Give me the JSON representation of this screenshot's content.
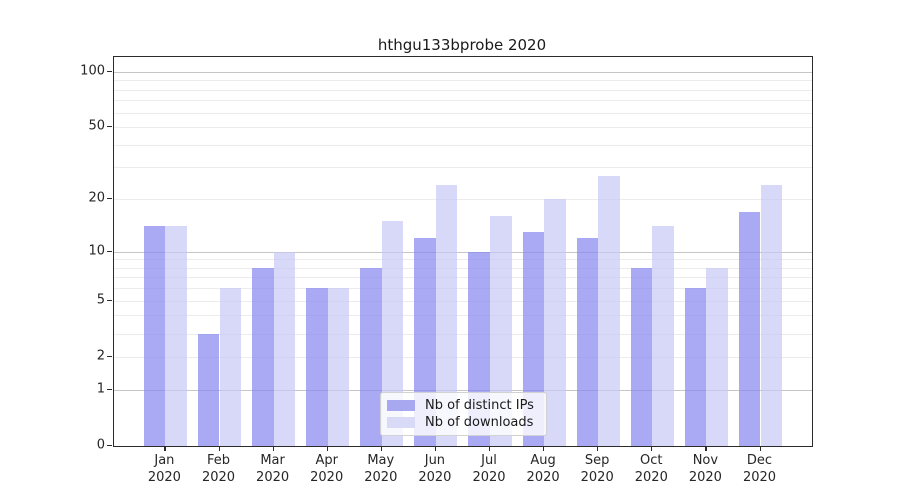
{
  "figure": {
    "title": "hthgu133bprobe 2020"
  },
  "chart_data": {
    "type": "bar",
    "title": "hthgu133bprobe 2020",
    "categories": [
      {
        "month": "Jan",
        "year": "2020"
      },
      {
        "month": "Feb",
        "year": "2020"
      },
      {
        "month": "Mar",
        "year": "2020"
      },
      {
        "month": "Apr",
        "year": "2020"
      },
      {
        "month": "May",
        "year": "2020"
      },
      {
        "month": "Jun",
        "year": "2020"
      },
      {
        "month": "Jul",
        "year": "2020"
      },
      {
        "month": "Aug",
        "year": "2020"
      },
      {
        "month": "Sep",
        "year": "2020"
      },
      {
        "month": "Oct",
        "year": "2020"
      },
      {
        "month": "Nov",
        "year": "2020"
      },
      {
        "month": "Dec",
        "year": "2020"
      }
    ],
    "series": [
      {
        "name": "Nb of distinct IPs",
        "key": "ips",
        "color": "#a8a8f0",
        "values": [
          14,
          3,
          8,
          6,
          8,
          12,
          10,
          13,
          12,
          8,
          6,
          17
        ]
      },
      {
        "name": "Nb of downloads",
        "key": "downloads",
        "color": "#d9d9f8",
        "values": [
          14,
          6,
          10,
          6,
          15,
          24,
          16,
          20,
          27,
          14,
          8,
          24
        ]
      }
    ],
    "xlabel": "",
    "ylabel": "",
    "yscale": "log1p",
    "ylim": [
      0,
      120
    ],
    "ytick_labels": [
      0,
      1,
      2,
      5,
      10,
      20,
      50,
      100
    ],
    "grid": {
      "on": true,
      "major": [
        1,
        10,
        100
      ],
      "minor": [
        2,
        3,
        4,
        5,
        6,
        7,
        8,
        9,
        20,
        30,
        40,
        50,
        60,
        70,
        80,
        90
      ]
    },
    "legend": {
      "position": "lower center",
      "entries": [
        "Nb of distinct IPs",
        "Nb of downloads"
      ]
    }
  }
}
